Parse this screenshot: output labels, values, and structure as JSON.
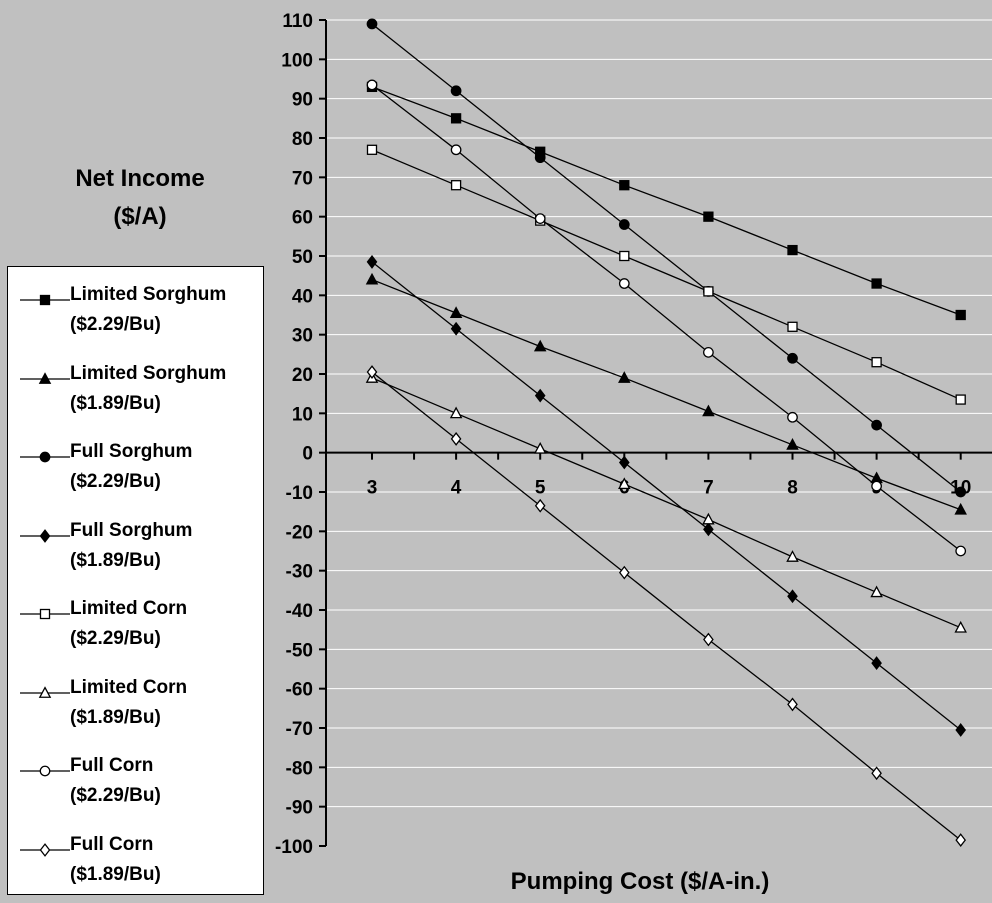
{
  "chart_data": {
    "type": "line",
    "xlabel": "Pumping Cost ($/A-in.)",
    "ylabel_line1": "Net Income",
    "ylabel_line2": "($/A)",
    "x": [
      3,
      4,
      5,
      6,
      7,
      8,
      9,
      10
    ],
    "ylim": [
      -100,
      110
    ],
    "yticks": [
      110,
      100,
      90,
      80,
      70,
      60,
      50,
      40,
      30,
      20,
      10,
      0,
      -10,
      -20,
      -30,
      -40,
      -50,
      -60,
      -70,
      -80,
      -90,
      -100
    ],
    "grid": "horizontal",
    "legend_position": "left",
    "colors": {
      "background": "#c0c0c0",
      "gridline": "#ffffff",
      "axis": "#000000",
      "series": "#000000",
      "legend_bg": "#ffffff"
    },
    "series": [
      {
        "name": "Limited Sorghum",
        "price": "($2.29/Bu)",
        "marker": "square-filled",
        "values": [
          93,
          85,
          76.5,
          68,
          60,
          51.5,
          43,
          35
        ]
      },
      {
        "name": "Limited Sorghum",
        "price": "($1.89/Bu)",
        "marker": "triangle-filled",
        "values": [
          44,
          35.5,
          27,
          19,
          10.5,
          2,
          -6.5,
          -14.5
        ]
      },
      {
        "name": "Full Sorghum",
        "price": "($2.29/Bu)",
        "marker": "circle-filled",
        "values": [
          109,
          92,
          75,
          58,
          41,
          24,
          7,
          -10
        ]
      },
      {
        "name": "Full Sorghum",
        "price": "($1.89/Bu)",
        "marker": "diamond-filled",
        "values": [
          48.5,
          31.5,
          14.5,
          -2.5,
          -19.5,
          -36.5,
          -53.5,
          -70.5
        ]
      },
      {
        "name": "Limited Corn",
        "price": "($2.29/Bu)",
        "marker": "square-open",
        "values": [
          77,
          68,
          59,
          50,
          41,
          32,
          23,
          13.5
        ]
      },
      {
        "name": "Limited Corn",
        "price": "($1.89/Bu)",
        "marker": "triangle-open",
        "values": [
          19,
          10,
          1,
          -8,
          -17,
          -26.5,
          -35.5,
          -44.5
        ]
      },
      {
        "name": "Full Corn",
        "price": "($2.29/Bu)",
        "marker": "circle-open",
        "values": [
          93.5,
          77,
          59.5,
          43,
          25.5,
          9,
          -8.5,
          -25
        ]
      },
      {
        "name": "Full Corn",
        "price": "($1.89/Bu)",
        "marker": "diamond-open",
        "values": [
          20.5,
          3.5,
          -13.5,
          -30.5,
          -47.5,
          -64,
          -81.5,
          -98.5
        ]
      }
    ]
  }
}
